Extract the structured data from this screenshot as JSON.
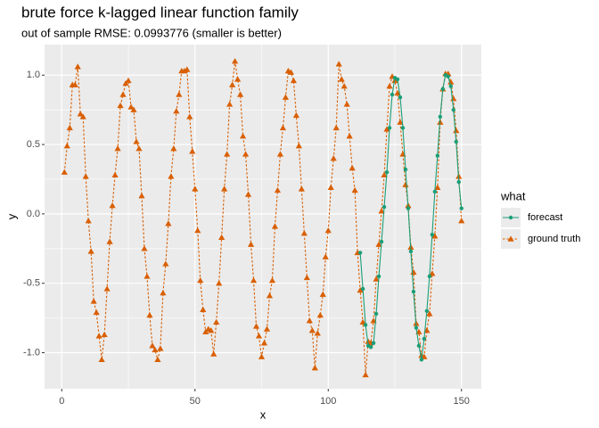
{
  "chart_data": {
    "type": "line",
    "title": "brute force k-lagged linear function family",
    "subtitle": "out of sample RMSE: 0.0993776 (smaller is better)",
    "x_label": "x",
    "y_label": "y",
    "legend_title": "what",
    "legend_position": "right",
    "x": [
      1,
      2,
      3,
      4,
      5,
      6,
      7,
      8,
      9,
      10,
      11,
      12,
      13,
      14,
      15,
      16,
      17,
      18,
      19,
      20,
      21,
      22,
      23,
      24,
      25,
      26,
      27,
      28,
      29,
      30,
      31,
      32,
      33,
      34,
      35,
      36,
      37,
      38,
      39,
      40,
      41,
      42,
      43,
      44,
      45,
      46,
      47,
      48,
      49,
      50,
      51,
      52,
      53,
      54,
      55,
      56,
      57,
      58,
      59,
      60,
      61,
      62,
      63,
      64,
      65,
      66,
      67,
      68,
      69,
      70,
      71,
      72,
      73,
      74,
      75,
      76,
      77,
      78,
      79,
      80,
      81,
      82,
      83,
      84,
      85,
      86,
      87,
      88,
      89,
      90,
      91,
      92,
      93,
      94,
      95,
      96,
      97,
      98,
      99,
      100,
      101,
      102,
      103,
      104,
      105,
      106,
      107,
      108,
      109,
      110,
      111,
      112,
      113,
      114,
      115,
      116,
      117,
      118,
      119,
      120,
      121,
      122,
      123,
      124,
      125,
      126,
      127,
      128,
      129,
      130,
      131,
      132,
      133,
      134,
      135,
      136,
      137,
      138,
      139,
      140,
      141,
      142,
      143,
      144,
      145,
      146,
      147,
      148,
      149,
      150
    ],
    "series": [
      {
        "name": "forecast",
        "color": "#1b9e77",
        "marker": "circle",
        "dashed": false,
        "values": [
          null,
          null,
          null,
          null,
          null,
          null,
          null,
          null,
          null,
          null,
          null,
          null,
          null,
          null,
          null,
          null,
          null,
          null,
          null,
          null,
          null,
          null,
          null,
          null,
          null,
          null,
          null,
          null,
          null,
          null,
          null,
          null,
          null,
          null,
          null,
          null,
          null,
          null,
          null,
          null,
          null,
          null,
          null,
          null,
          null,
          null,
          null,
          null,
          null,
          null,
          null,
          null,
          null,
          null,
          null,
          null,
          null,
          null,
          null,
          null,
          null,
          null,
          null,
          null,
          null,
          null,
          null,
          null,
          null,
          null,
          null,
          null,
          null,
          null,
          null,
          null,
          null,
          null,
          null,
          null,
          null,
          null,
          null,
          null,
          null,
          null,
          null,
          null,
          null,
          null,
          null,
          null,
          null,
          null,
          null,
          null,
          null,
          null,
          null,
          null,
          null,
          null,
          null,
          null,
          null,
          null,
          null,
          null,
          null,
          null,
          null,
          -0.28,
          -0.54,
          -0.8,
          -0.95,
          -0.96,
          -0.93,
          -0.72,
          -0.45,
          -0.2,
          0.05,
          0.3,
          0.62,
          0.86,
          0.98,
          0.97,
          0.84,
          0.62,
          0.32,
          0.04,
          -0.27,
          -0.56,
          -0.82,
          -0.95,
          -1.05,
          -0.9,
          -0.7,
          -0.45,
          -0.15,
          0.16,
          0.42,
          0.7,
          0.9,
          1.0,
          0.99,
          0.92,
          0.75,
          0.52,
          0.23,
          0.04
        ]
      },
      {
        "name": "ground truth",
        "color": "#d95f02",
        "marker": "triangle",
        "dashed": true,
        "values": [
          0.3,
          0.49,
          0.62,
          0.93,
          0.93,
          1.06,
          0.72,
          0.7,
          0.27,
          -0.05,
          -0.27,
          -0.63,
          -0.71,
          -0.88,
          -1.05,
          -0.87,
          -0.54,
          -0.2,
          0.06,
          0.28,
          0.47,
          0.78,
          0.86,
          0.94,
          0.96,
          0.77,
          0.75,
          0.52,
          0.47,
          0.13,
          -0.25,
          -0.45,
          -0.73,
          -0.95,
          -0.98,
          -1.05,
          -0.97,
          -0.57,
          -0.36,
          -0.07,
          0.27,
          0.47,
          0.74,
          0.86,
          1.03,
          1.03,
          1.04,
          0.7,
          0.45,
          0.18,
          -0.12,
          -0.48,
          -0.69,
          -0.85,
          -0.83,
          -0.84,
          -1.01,
          -0.78,
          -0.5,
          -0.17,
          0.18,
          0.43,
          0.79,
          0.93,
          1.1,
          0.97,
          0.86,
          0.56,
          0.43,
          0.14,
          -0.22,
          -0.48,
          -0.81,
          -0.88,
          -1.03,
          -0.93,
          -0.83,
          -0.59,
          -0.48,
          -0.09,
          0.17,
          0.43,
          0.62,
          0.84,
          1.03,
          1.02,
          0.96,
          0.71,
          0.49,
          0.18,
          -0.14,
          -0.46,
          -0.77,
          -0.84,
          -1.11,
          -0.86,
          -0.73,
          -0.58,
          -0.31,
          -0.12,
          0.19,
          0.4,
          0.62,
          1.08,
          0.97,
          0.92,
          0.79,
          0.56,
          0.33,
          0.17,
          -0.28,
          -0.55,
          -0.78,
          -1.16,
          -0.92,
          -0.93,
          -0.77,
          -0.47,
          -0.22,
          0.02,
          0.28,
          0.61,
          0.92,
          0.99,
          0.96,
          0.87,
          0.66,
          0.43,
          0.21,
          0.06,
          -0.24,
          -0.42,
          -0.79,
          -0.85,
          -1.02,
          -1.03,
          -0.84,
          -0.72,
          -0.43,
          -0.16,
          0.19,
          0.66,
          0.9,
          1.01,
          1.01,
          0.95,
          0.83,
          0.6,
          0.27,
          -0.05
        ]
      }
    ],
    "xlim": [
      -6.45,
      157.45
    ],
    "xticks": [
      0,
      50,
      100,
      150
    ],
    "ylim": [
      -1.26,
      1.22
    ],
    "yticks": [
      {
        "value": -1,
        "label": "-1.0"
      },
      {
        "value": -0.5,
        "label": "-0.5"
      },
      {
        "value": 0,
        "label": "0.0"
      },
      {
        "value": 0.5,
        "label": "0.5"
      },
      {
        "value": 1,
        "label": "1.0"
      }
    ],
    "grid": true
  }
}
